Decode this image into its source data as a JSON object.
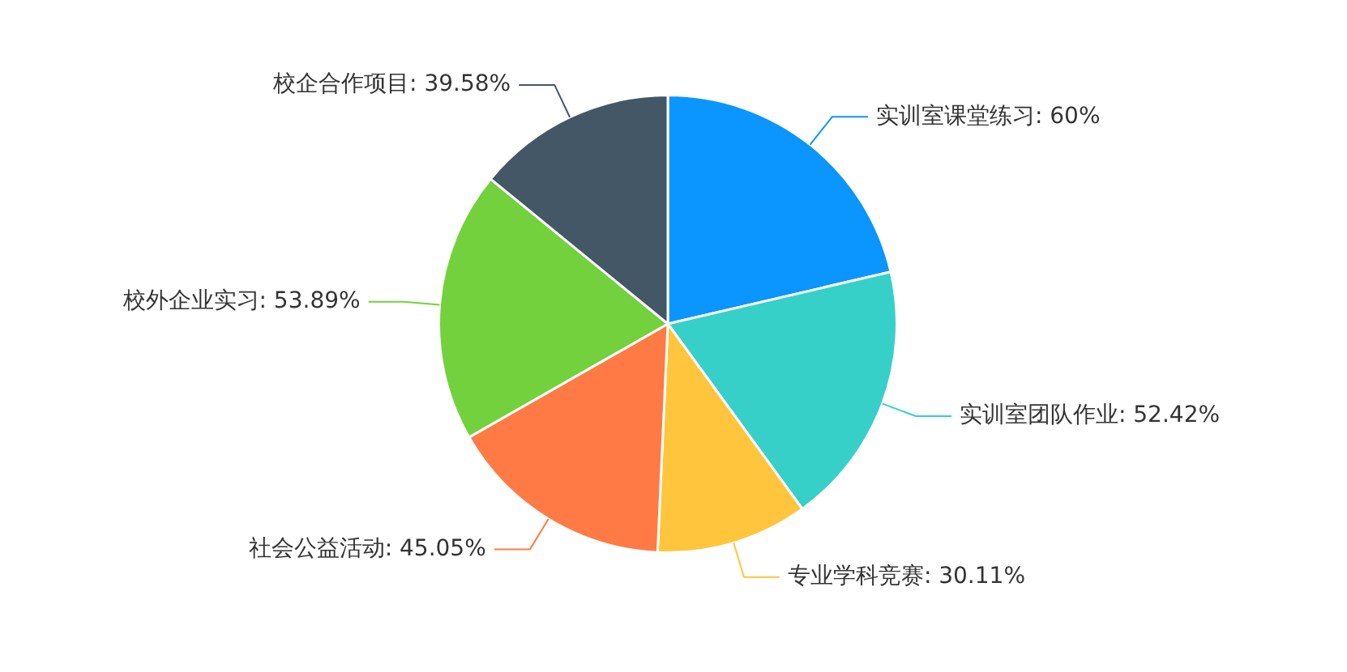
{
  "chart_data": {
    "type": "pie",
    "categories": [
      "实训室课堂练习",
      "实训室团队作业",
      "专业学科竞赛",
      "社会公益活动",
      "校外企业实习",
      "校企合作项目"
    ],
    "values": [
      60,
      52.42,
      30.11,
      45.05,
      53.89,
      39.58
    ],
    "value_labels": [
      "60%",
      "52.42%",
      "30.11%",
      "45.05%",
      "53.89%",
      "39.58%"
    ],
    "colors": [
      "#0a95ff",
      "#36d0c9",
      "#ffc53d",
      "#ff7a45",
      "#73d13d",
      "#435766"
    ],
    "legend": false
  }
}
